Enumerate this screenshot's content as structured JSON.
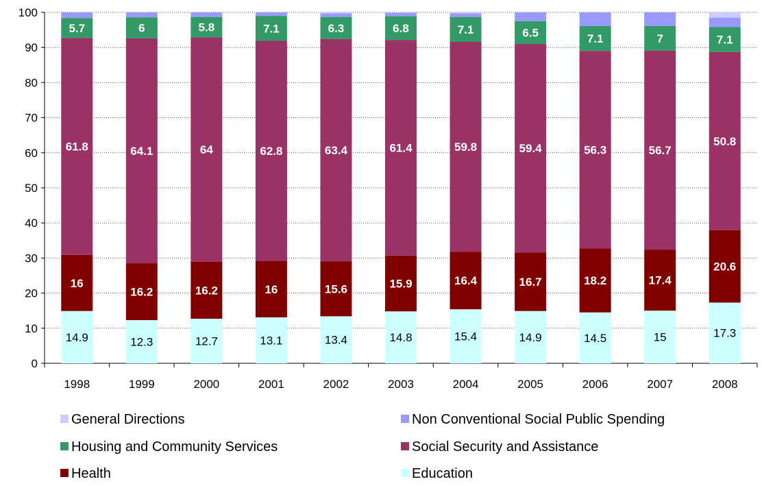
{
  "chart_data": {
    "type": "bar",
    "stacked": true,
    "categories": [
      "1998",
      "1999",
      "2000",
      "2001",
      "2002",
      "2003",
      "2004",
      "2005",
      "2006",
      "2007",
      "2008"
    ],
    "ylim": [
      0,
      100
    ],
    "yticks": [
      0,
      10,
      20,
      30,
      40,
      50,
      60,
      70,
      80,
      90,
      100
    ],
    "grid": "horizontal dotted",
    "legend_position": "bottom",
    "series": [
      {
        "name": "Education",
        "color": "#ccffff",
        "label_color": "#000000",
        "label_bold": false,
        "values": [
          14.9,
          12.3,
          12.7,
          13.1,
          13.4,
          14.8,
          15.4,
          14.9,
          14.5,
          15,
          17.3
        ],
        "labels": [
          "14.9",
          "12.3",
          "12.7",
          "13.1",
          "13.4",
          "14.8",
          "15.4",
          "14.9",
          "14.5",
          "15",
          "17.3"
        ]
      },
      {
        "name": "Health",
        "color": "#800000",
        "label_color": "#ffffff",
        "label_bold": true,
        "values": [
          16,
          16.2,
          16.2,
          16,
          15.6,
          15.9,
          16.4,
          16.7,
          18.2,
          17.4,
          20.6
        ],
        "labels": [
          "16",
          "16.2",
          "16.2",
          "16",
          "15.6",
          "15.9",
          "16.4",
          "16.7",
          "18.2",
          "17.4",
          "20.6"
        ]
      },
      {
        "name": "Social Security and Assistance",
        "color": "#993366",
        "label_color": "#ffffff",
        "label_bold": true,
        "values": [
          61.8,
          64.1,
          64,
          62.8,
          63.4,
          61.4,
          59.8,
          59.4,
          56.3,
          56.7,
          50.8
        ],
        "labels": [
          "61.8",
          "64.1",
          "64",
          "62.8",
          "63.4",
          "61.4",
          "59.8",
          "59.4",
          "56.3",
          "56.7",
          "50.8"
        ]
      },
      {
        "name": "Housing and Community Services",
        "color": "#339966",
        "label_color": "#ffffff",
        "label_bold": true,
        "values": [
          5.7,
          6,
          5.8,
          7.1,
          6.3,
          6.8,
          7.1,
          6.5,
          7.1,
          7,
          7.1
        ],
        "labels": [
          "5.7",
          "6",
          "5.8",
          "7.1",
          "6.3",
          "6.8",
          "7.1",
          "6.5",
          "7.1",
          "7",
          "7.1"
        ]
      },
      {
        "name": "Non Conventional Social Public Spending",
        "color": "#9999ff",
        "label_color": null,
        "label_bold": false,
        "values": [
          1.6,
          1.4,
          1.3,
          1.0,
          1.0,
          1.0,
          1.0,
          2.5,
          3.9,
          3.9,
          2.7
        ],
        "labels": []
      },
      {
        "name": "General Directions",
        "color": "#ccccff",
        "label_color": null,
        "label_bold": false,
        "values": [
          0.0,
          0.0,
          0.0,
          0.0,
          0.3,
          0.1,
          0.3,
          0.0,
          0.0,
          0.0,
          1.5
        ],
        "labels": []
      }
    ],
    "legend_order": [
      "General Directions",
      "Non Conventional Social Public Spending",
      "Housing and Community Services",
      "Social Security and Assistance",
      "Health",
      "Education"
    ]
  }
}
